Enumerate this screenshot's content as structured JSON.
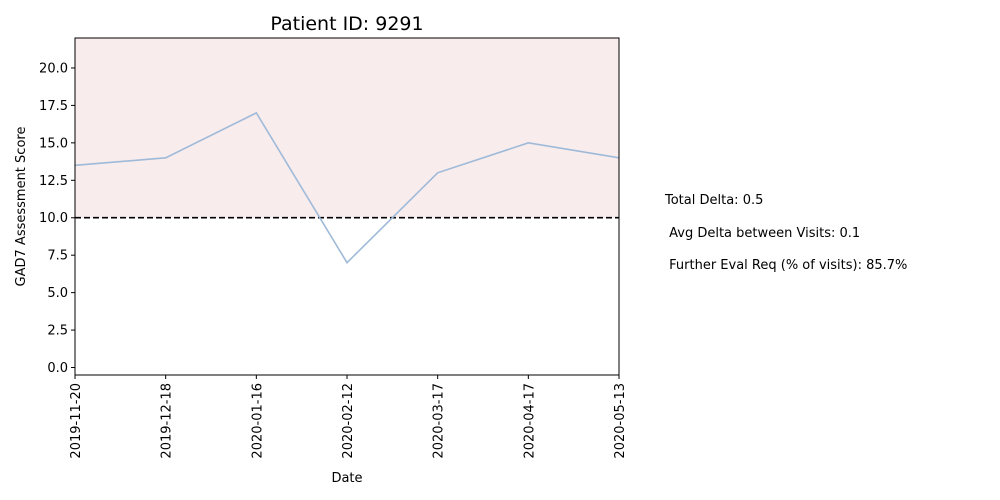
{
  "chart_data": {
    "type": "line",
    "title": "Patient ID: 9291",
    "xlabel": "Date",
    "ylabel": "GAD7 Assessment Score",
    "x": [
      "2019-11-20",
      "2019-12-18",
      "2020-01-16",
      "2020-02-12",
      "2020-03-17",
      "2020-04-17",
      "2020-05-13"
    ],
    "series": [
      {
        "values": [
          13.5,
          14,
          17,
          7,
          13,
          15,
          14
        ],
        "color": "#9fbad8"
      }
    ],
    "ylim": [
      -0.5,
      22
    ],
    "yticks": [
      "0.0",
      "2.5",
      "5.0",
      "7.5",
      "10.0",
      "12.5",
      "15.0",
      "17.5",
      "20.0"
    ],
    "threshold": {
      "value": 10,
      "style": "dashed",
      "color": "#000000"
    },
    "shaded_region": {
      "from": 10,
      "to": 22,
      "color": "#f8eced"
    },
    "grid": false,
    "legend": "none"
  },
  "stats": {
    "total_delta": "Total Delta: 0.5",
    "avg_delta": " Avg Delta between Visits: 0.1",
    "further_eval": " Further Eval Req (% of visits): 85.7%"
  }
}
